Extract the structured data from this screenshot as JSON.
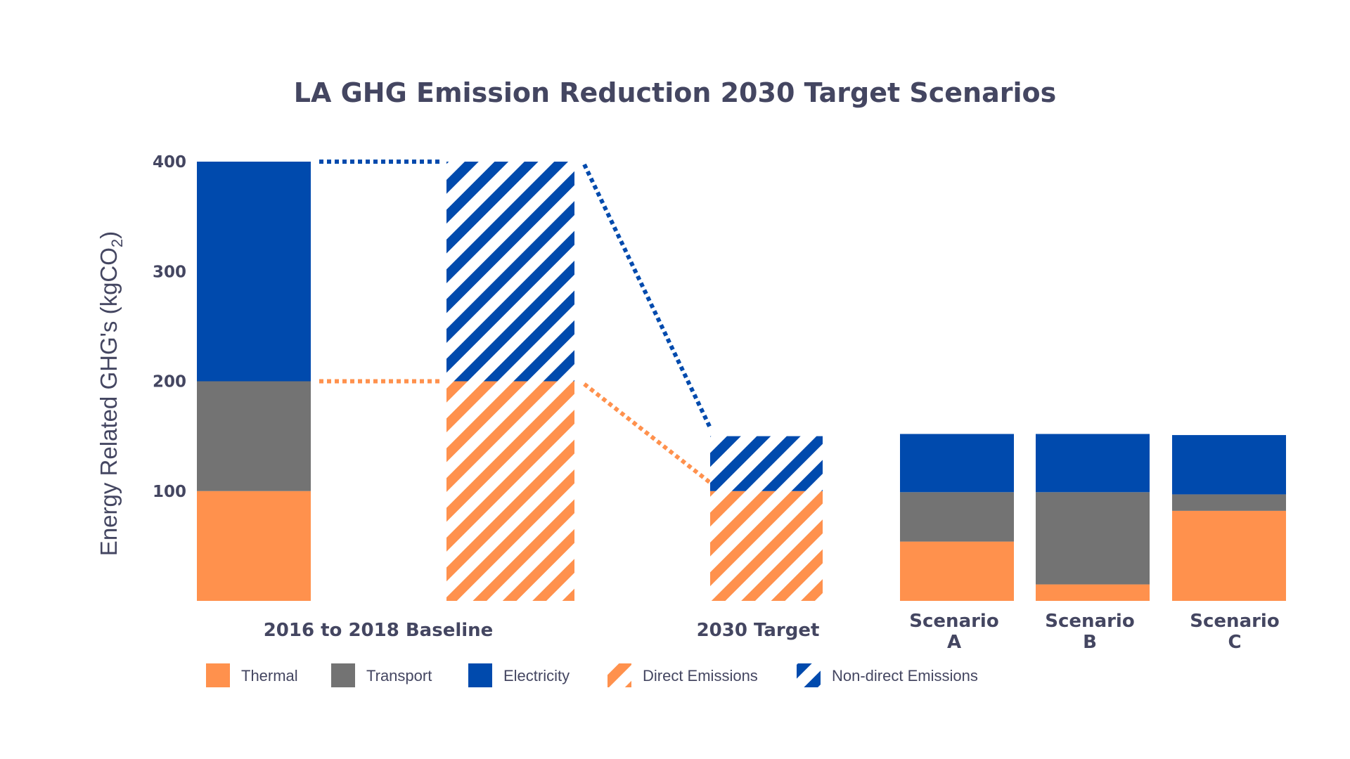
{
  "colors": {
    "thermal": "#ff914d",
    "transport": "#737373",
    "electricity": "#004aad",
    "text": "#444661"
  },
  "chart_data": {
    "type": "bar",
    "title": "LA GHG Emission Reduction 2030 Target Scenarios",
    "ylabel": "Energy Related GHG's (kgCO",
    "ylabel_subscript": "2",
    "ylabel_close": ")",
    "ylim": [
      0,
      400
    ],
    "yticks": [
      100,
      200,
      300,
      400
    ],
    "grid": false,
    "legend_position": "bottom-left",
    "categories": [
      {
        "id": "baseline",
        "label_lines": [
          "2016 to 2018 Baseline"
        ]
      },
      {
        "id": "target",
        "label_lines": [
          "2030 Target"
        ]
      },
      {
        "id": "scenario_a",
        "label_lines": [
          "Scenario",
          "A"
        ]
      },
      {
        "id": "scenario_b",
        "label_lines": [
          "Scenario",
          "B"
        ]
      },
      {
        "id": "scenario_c",
        "label_lines": [
          "Scenario",
          "C"
        ]
      }
    ],
    "bars": [
      {
        "category": "baseline",
        "style": "solid",
        "thermal": 100,
        "transport": 100,
        "electricity": 200
      },
      {
        "category": "baseline",
        "style": "hatched",
        "direct": 200,
        "non_direct": 200
      },
      {
        "category": "target",
        "style": "hatched",
        "direct": 100,
        "non_direct": 50
      },
      {
        "category": "scenario_a",
        "style": "solid",
        "thermal": 54,
        "transport": 45,
        "electricity": 53
      },
      {
        "category": "scenario_b",
        "style": "solid",
        "thermal": 15,
        "transport": 84,
        "electricity": 53
      },
      {
        "category": "scenario_c",
        "style": "solid",
        "thermal": 82,
        "transport": 15,
        "electricity": 54
      }
    ],
    "connectors": [
      {
        "series": "non_direct",
        "from": 400,
        "to": 150
      },
      {
        "series": "direct",
        "from": 200,
        "to": 100
      }
    ],
    "legend": [
      {
        "key": "thermal",
        "label": "Thermal",
        "style": "solid"
      },
      {
        "key": "transport",
        "label": "Transport",
        "style": "solid"
      },
      {
        "key": "electricity",
        "label": "Electricity",
        "style": "solid"
      },
      {
        "key": "direct",
        "label": "Direct Emissions",
        "style": "hatched"
      },
      {
        "key": "non_direct",
        "label": "Non-direct Emissions",
        "style": "hatched"
      }
    ]
  }
}
